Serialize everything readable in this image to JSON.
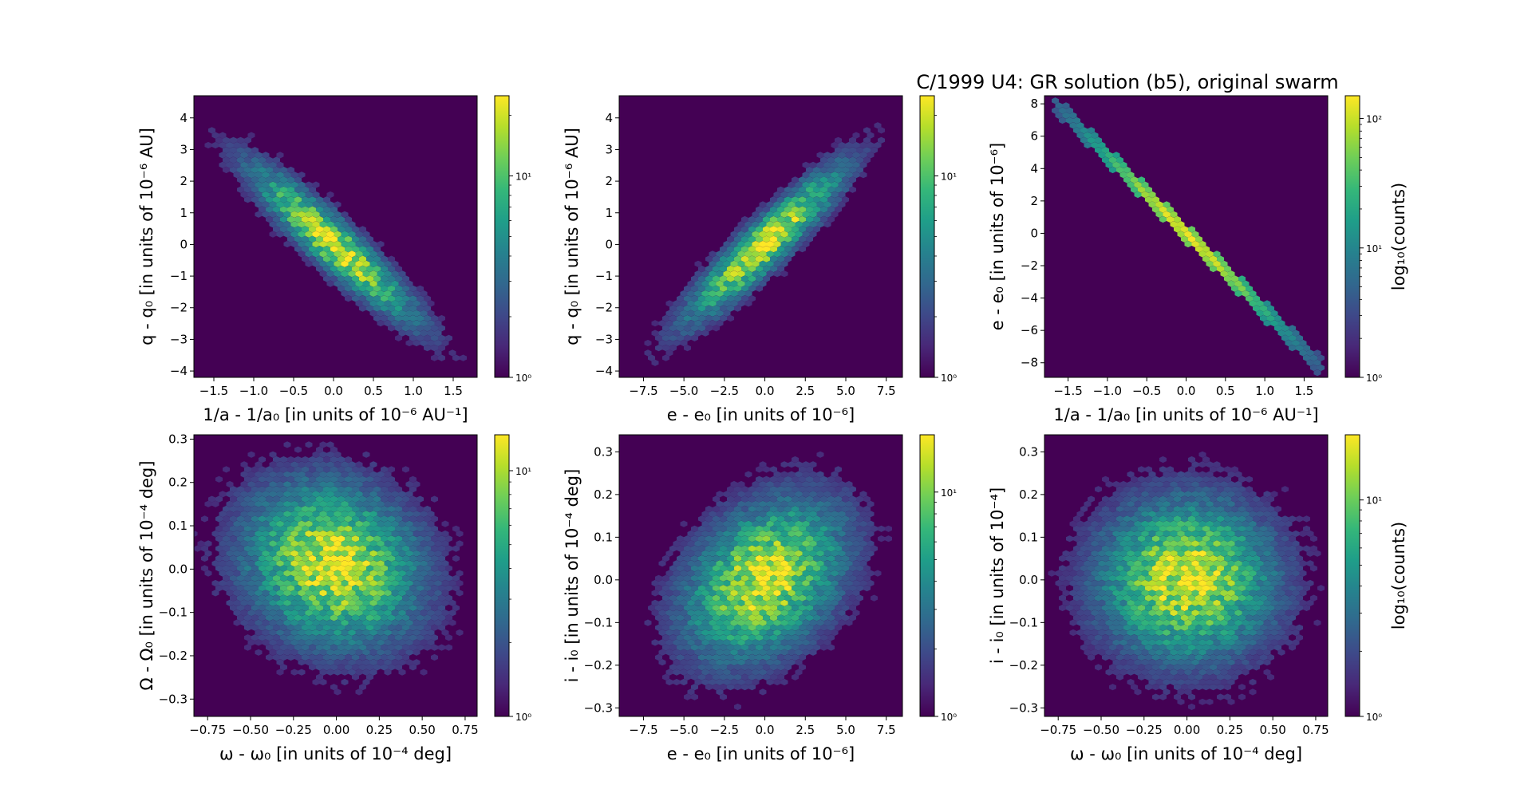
{
  "figure": {
    "title": "C/1999 U4: GR solution (b5), original swarm",
    "background": "#ffffff",
    "plot_background": "#440154",
    "colormap": [
      "#440154",
      "#482878",
      "#3e4989",
      "#31688e",
      "#26828e",
      "#1f9e89",
      "#35b779",
      "#6ece58",
      "#b5de2b",
      "#fde725"
    ]
  },
  "chart_data": [
    {
      "type": "heatmap",
      "subtype": "hexbin",
      "xlabel": "1/a - 1/a₀ [in units of 10⁻⁶ AU⁻¹]",
      "ylabel": "q - q₀ [in units of 10⁻⁶ AU]",
      "xlim": [
        -1.75,
        1.8
      ],
      "ylim": [
        -4.2,
        4.7
      ],
      "xticks": [
        -1.5,
        -1.0,
        -0.5,
        0.0,
        0.5,
        1.0,
        1.5
      ],
      "xtick_labels": [
        "−1.5",
        "−1.0",
        "−0.5",
        "0.0",
        "0.5",
        "1.0",
        "1.5"
      ],
      "yticks": [
        -4,
        -3,
        -2,
        -1,
        0,
        1,
        2,
        3,
        4
      ],
      "ytick_labels": [
        "−4",
        "−3",
        "−2",
        "−1",
        "0",
        "1",
        "2",
        "3",
        "4"
      ],
      "density": {
        "cx": 0.0,
        "cy": 0.0,
        "sx": 0.55,
        "sy": 1.3,
        "rho": -0.92
      },
      "colorbar": {
        "scale": "log",
        "range": [
          1,
          25
        ],
        "tick_labels": [
          "10⁰",
          "10¹"
        ],
        "label": ""
      }
    },
    {
      "type": "heatmap",
      "subtype": "hexbin",
      "xlabel": "e - e₀ [in units of 10⁻⁶]",
      "ylabel": "q - q₀ [in units of 10⁻⁶ AU]",
      "xlim": [
        -9,
        8.5
      ],
      "ylim": [
        -4.2,
        4.7
      ],
      "xticks": [
        -7.5,
        -5.0,
        -2.5,
        0.0,
        2.5,
        5.0,
        7.5
      ],
      "xtick_labels": [
        "−7.5",
        "−5.0",
        "−2.5",
        "0.0",
        "2.5",
        "5.0",
        "7.5"
      ],
      "yticks": [
        -4,
        -3,
        -2,
        -1,
        0,
        1,
        2,
        3,
        4
      ],
      "ytick_labels": [
        "−4",
        "−3",
        "−2",
        "−1",
        "0",
        "1",
        "2",
        "3",
        "4"
      ],
      "density": {
        "cx": 0.0,
        "cy": 0.0,
        "sx": 2.6,
        "sy": 1.3,
        "rho": 0.92
      },
      "colorbar": {
        "scale": "log",
        "range": [
          1,
          25
        ],
        "tick_labels": [
          "10⁰",
          "10¹"
        ],
        "label": ""
      }
    },
    {
      "type": "heatmap",
      "subtype": "hexbin",
      "title": "C/1999 U4: GR solution (b5), original swarm",
      "xlabel": "1/a - 1/a₀ [in units of 10⁻⁶ AU⁻¹]",
      "ylabel": "e - e₀ [in units of 10⁻⁶]",
      "xlim": [
        -1.8,
        1.8
      ],
      "ylim": [
        -8.9,
        8.5
      ],
      "xticks": [
        -1.5,
        -1.0,
        -0.5,
        0.0,
        0.5,
        1.0,
        1.5
      ],
      "xtick_labels": [
        "−1.5",
        "−1.0",
        "−0.5",
        "0.0",
        "0.5",
        "1.0",
        "1.5"
      ],
      "yticks": [
        -8,
        -6,
        -4,
        -2,
        0,
        2,
        4,
        6,
        8
      ],
      "ytick_labels": [
        "−8",
        "−6",
        "−4",
        "−2",
        "0",
        "2",
        "4",
        "6",
        "8"
      ],
      "line": {
        "slope": -4.8,
        "intercept": 0.0,
        "x_from": -1.7,
        "x_to": 1.72,
        "spread": 0.62
      },
      "colorbar": {
        "scale": "log",
        "range": [
          1,
          150
        ],
        "tick_labels": [
          "10⁰",
          "10¹",
          "10²"
        ],
        "label": "log₁₀(counts)"
      }
    },
    {
      "type": "heatmap",
      "subtype": "hexbin",
      "xlabel": "ω - ω₀ [in units of 10⁻⁴ deg]",
      "ylabel": "Ω - Ω₀ [in units of 10⁻⁴ deg]",
      "xlim": [
        -0.83,
        0.82
      ],
      "ylim": [
        -0.34,
        0.31
      ],
      "xticks": [
        -0.75,
        -0.5,
        -0.25,
        0.0,
        0.25,
        0.5,
        0.75
      ],
      "xtick_labels": [
        "−0.75",
        "−0.50",
        "−0.25",
        "0.00",
        "0.25",
        "0.50",
        "0.75"
      ],
      "yticks": [
        -0.3,
        -0.2,
        -0.1,
        0.0,
        0.1,
        0.2,
        0.3
      ],
      "ytick_labels": [
        "−0.3",
        "−0.2",
        "−0.1",
        "0.0",
        "0.1",
        "0.2",
        "0.3"
      ],
      "density": {
        "cx": -0.02,
        "cy": 0.01,
        "sx": 0.27,
        "sy": 0.1,
        "rho": -0.15
      },
      "colorbar": {
        "scale": "log",
        "range": [
          1,
          14
        ],
        "tick_labels": [
          "10⁰",
          "10¹"
        ],
        "label": ""
      }
    },
    {
      "type": "heatmap",
      "subtype": "hexbin",
      "xlabel": "e - e₀ [in units of 10⁻⁶]",
      "ylabel": "i - i₀ [in units of 10⁻⁴ deg]",
      "xlim": [
        -9,
        8.5
      ],
      "ylim": [
        -0.32,
        0.34
      ],
      "xticks": [
        -7.5,
        -5.0,
        -2.5,
        0.0,
        2.5,
        5.0,
        7.5
      ],
      "xtick_labels": [
        "−7.5",
        "−5.0",
        "−2.5",
        "0.0",
        "2.5",
        "5.0",
        "7.5"
      ],
      "yticks": [
        -0.3,
        -0.2,
        -0.1,
        0.0,
        0.1,
        0.2,
        0.3
      ],
      "ytick_labels": [
        "−0.3",
        "−0.2",
        "−0.1",
        "0.0",
        "0.1",
        "0.2",
        "0.3"
      ],
      "density": {
        "cx": 0.0,
        "cy": 0.0,
        "sx": 2.6,
        "sy": 0.1,
        "rho": 0.35
      },
      "colorbar": {
        "scale": "log",
        "range": [
          1,
          18
        ],
        "tick_labels": [
          "10⁰",
          "10¹"
        ],
        "label": ""
      }
    },
    {
      "type": "heatmap",
      "subtype": "hexbin",
      "xlabel": "ω - ω₀ [in units of 10⁻⁴ deg]",
      "ylabel": "i - i₀ [in units of 10⁻⁴]",
      "xlim": [
        -0.83,
        0.82
      ],
      "ylim": [
        -0.32,
        0.34
      ],
      "xticks": [
        -0.75,
        -0.5,
        -0.25,
        0.0,
        0.25,
        0.5,
        0.75
      ],
      "xtick_labels": [
        "−0.75",
        "−0.50",
        "−0.25",
        "0.00",
        "0.25",
        "0.50",
        "0.75"
      ],
      "yticks": [
        -0.3,
        -0.2,
        -0.1,
        0.0,
        0.1,
        0.2,
        0.3
      ],
      "ytick_labels": [
        "−0.3",
        "−0.2",
        "−0.1",
        "0.0",
        "0.1",
        "0.2",
        "0.3"
      ],
      "density": {
        "cx": 0.0,
        "cy": 0.0,
        "sx": 0.27,
        "sy": 0.1,
        "rho": 0.0
      },
      "colorbar": {
        "scale": "log",
        "range": [
          1,
          20
        ],
        "tick_labels": [
          "10⁰",
          "10¹"
        ],
        "label": "log₁₀(counts)"
      }
    }
  ]
}
